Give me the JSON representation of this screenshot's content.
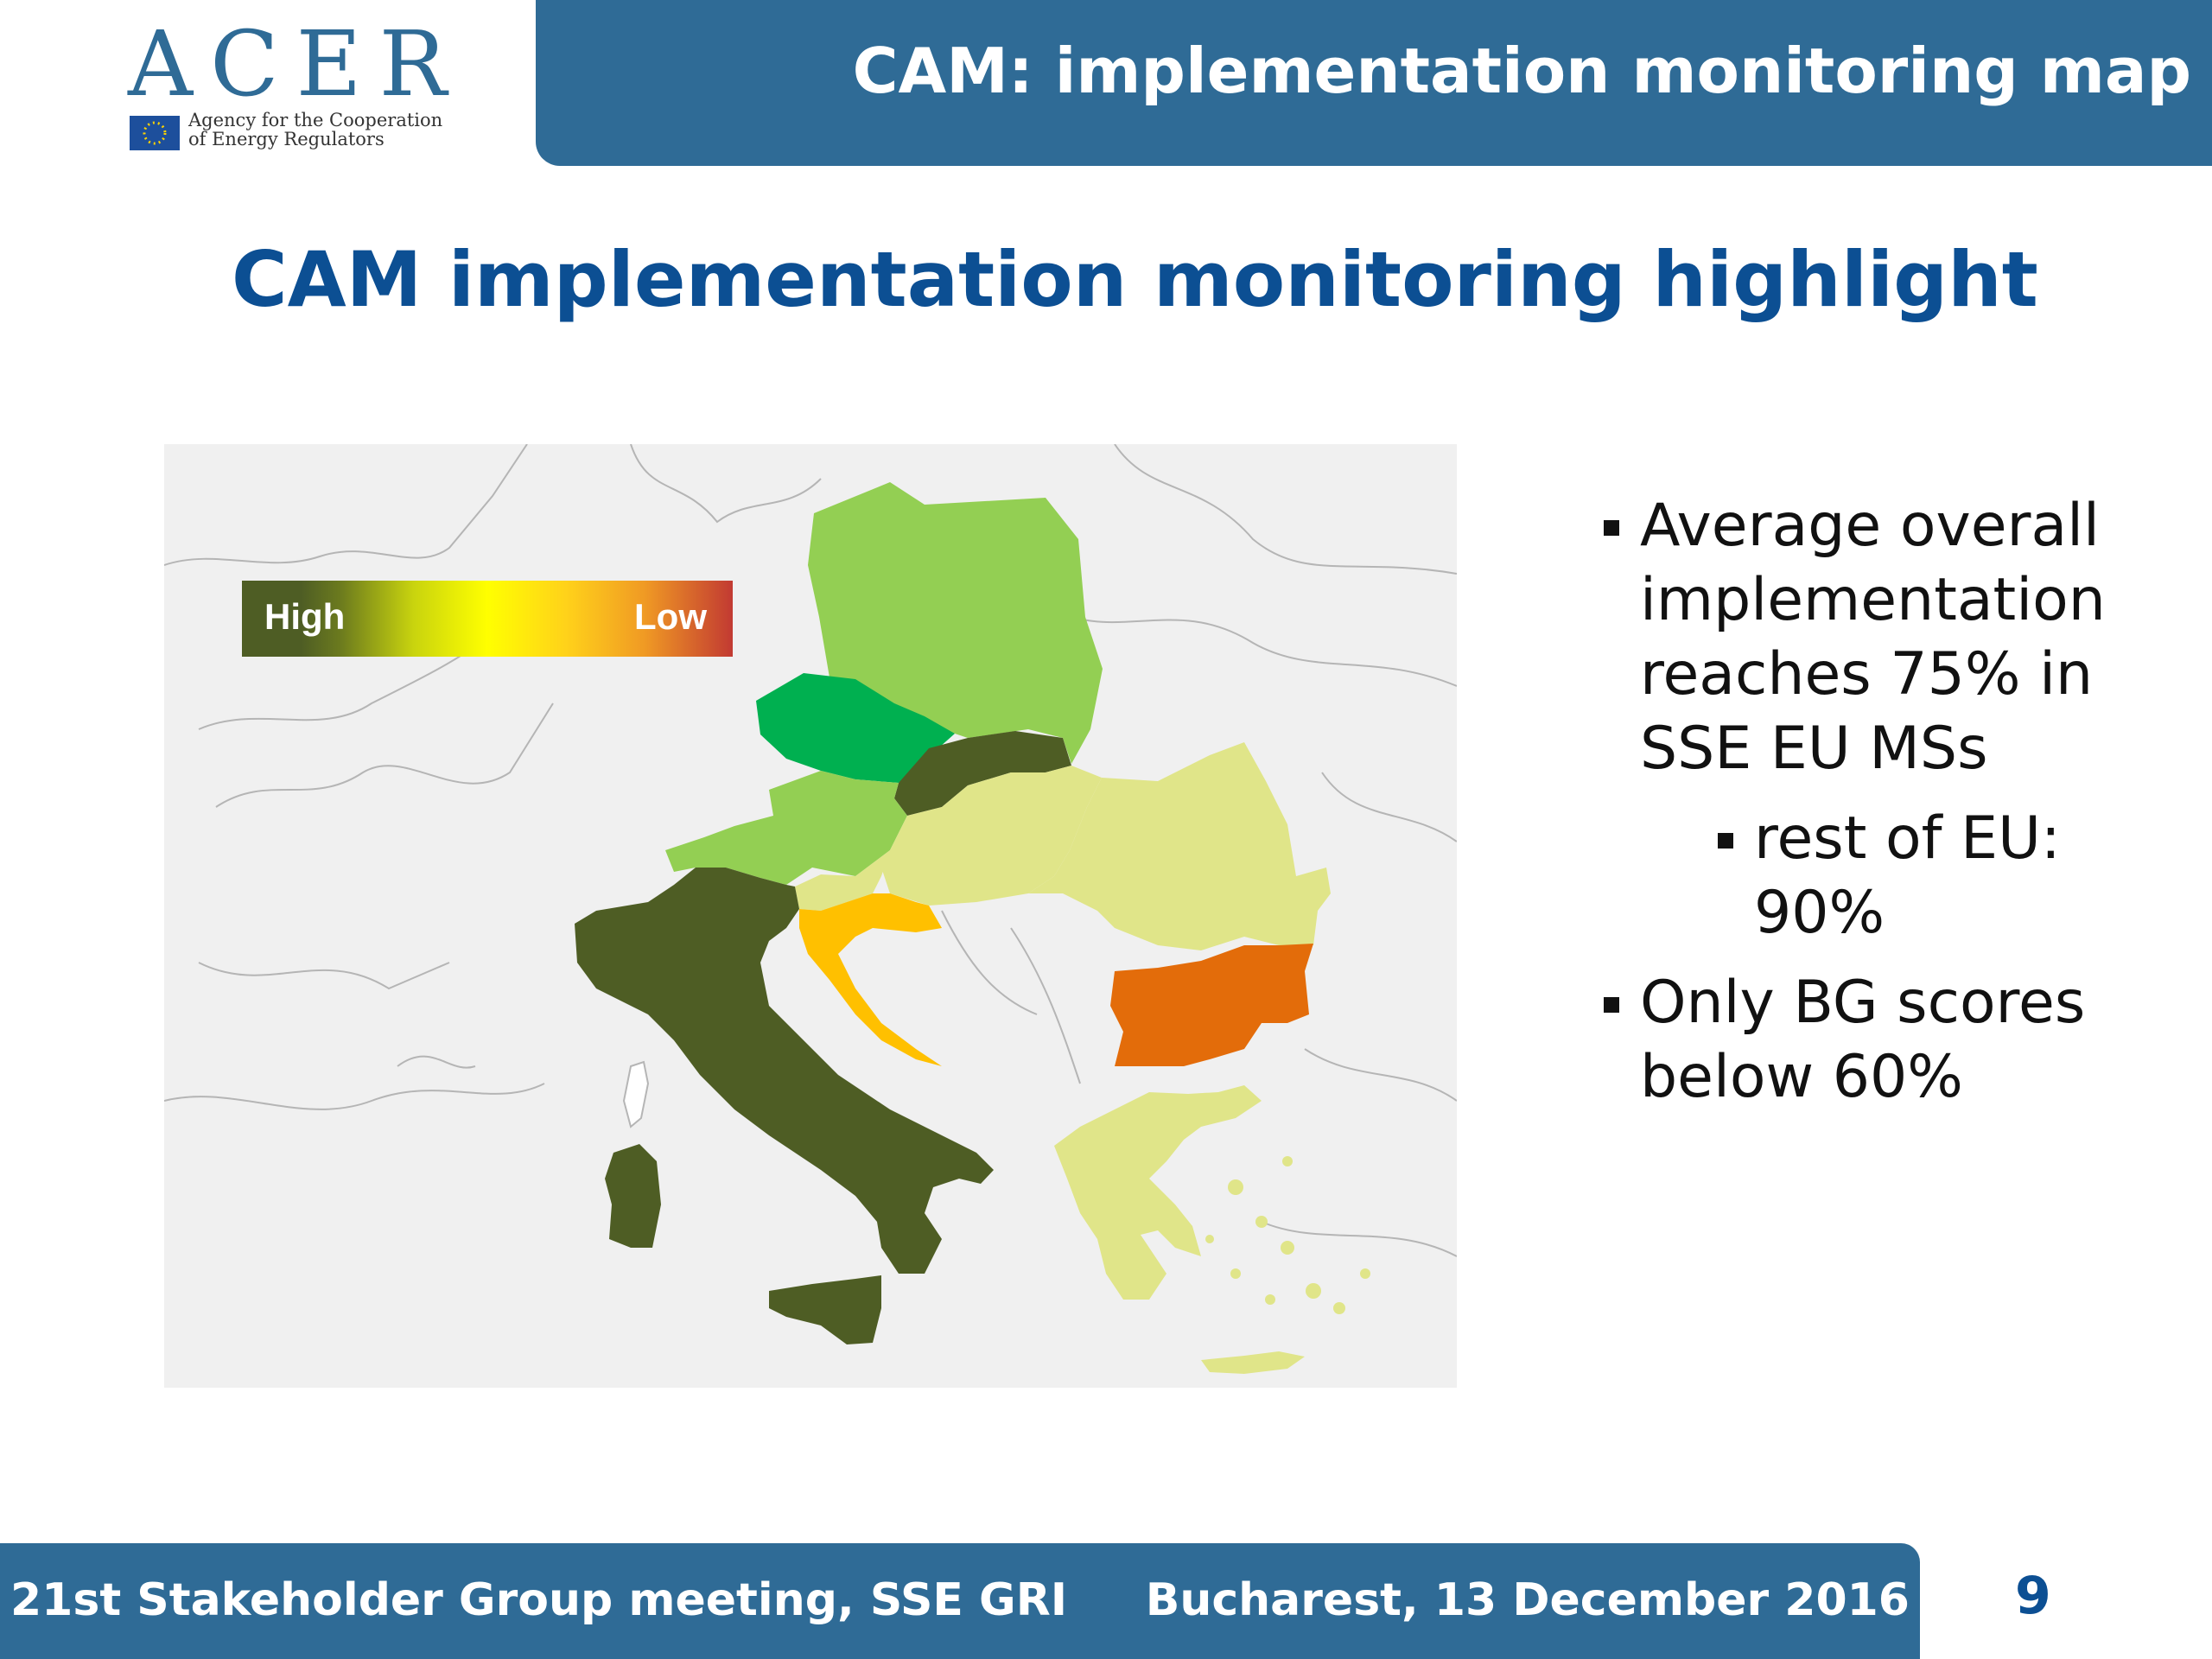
{
  "header": {
    "title": "CAM: implementation monitoring map"
  },
  "logo": {
    "wordmark": "ACER",
    "subtitle_line1": "Agency for the Cooperation",
    "subtitle_line2": "of Energy Regulators"
  },
  "slide": {
    "title": "CAM implementation monitoring highlight"
  },
  "legend": {
    "high_label": "High",
    "low_label": "Low"
  },
  "map": {
    "background_color": "#f0f0f0",
    "highlighted_countries": [
      {
        "name": "Poland",
        "color": "#93cf53"
      },
      {
        "name": "Czech Republic",
        "color": "#00b050"
      },
      {
        "name": "Slovakia",
        "color": "#4e5d24"
      },
      {
        "name": "Austria",
        "color": "#93cf53"
      },
      {
        "name": "Hungary",
        "color": "#e0e589"
      },
      {
        "name": "Slovenia",
        "color": "#e0e589"
      },
      {
        "name": "Croatia",
        "color": "#ffc000"
      },
      {
        "name": "Romania",
        "color": "#e0e589"
      },
      {
        "name": "Bulgaria",
        "color": "#e36c0a"
      },
      {
        "name": "Italy",
        "color": "#4e5d24"
      },
      {
        "name": "Greece",
        "color": "#e0e589"
      }
    ]
  },
  "bullets": {
    "item1": "Average overall implementation reaches 75% in SSE EU MSs",
    "item1_sub": "rest of EU: 90%",
    "item2": "Only BG scores below 60%"
  },
  "footer": {
    "left": "21st Stakeholder Group meeting, SSE GRI",
    "right": "Bucharest, 13 December 2016",
    "page": "9"
  },
  "colors": {
    "brand_blue": "#2f6b96",
    "title_blue": "#0c4f93"
  }
}
